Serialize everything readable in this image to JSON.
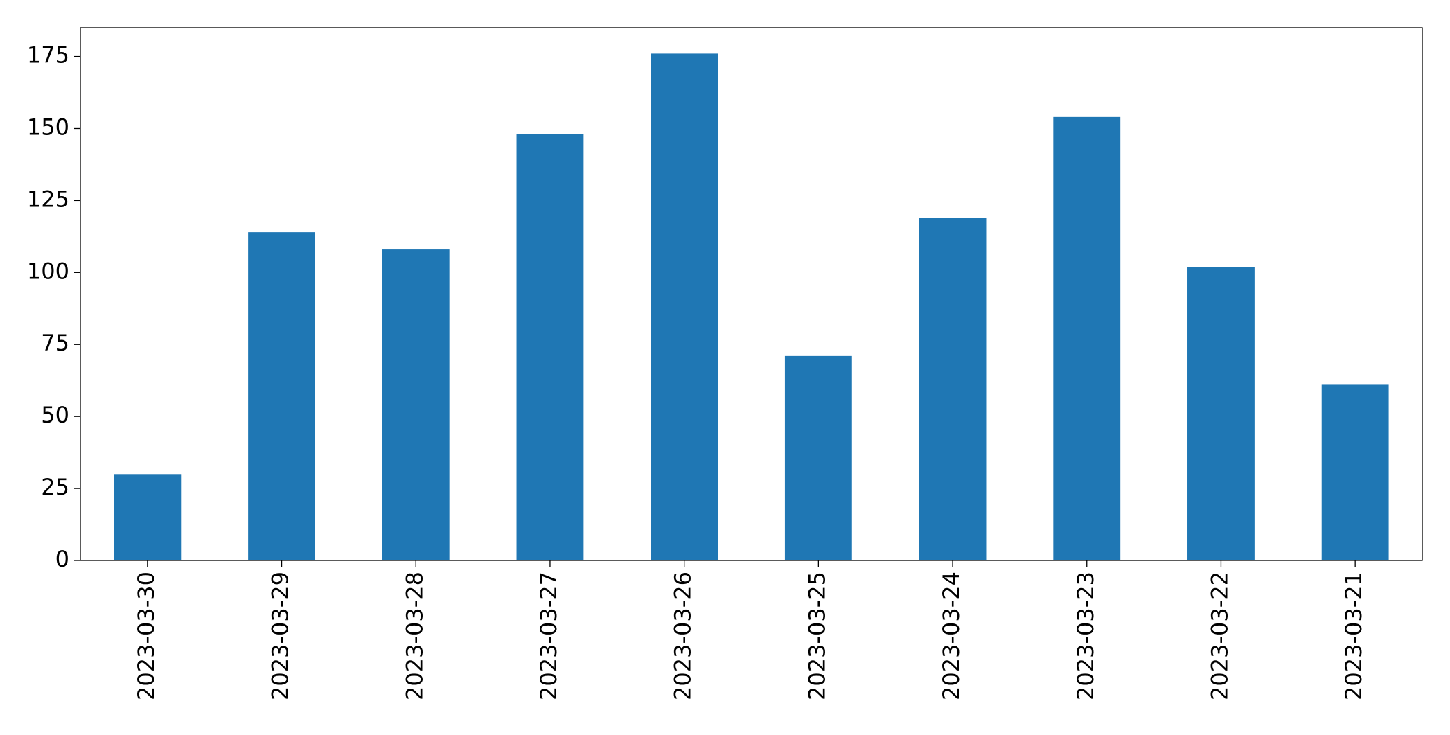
{
  "chart_data": {
    "type": "bar",
    "categories": [
      "2023-03-30",
      "2023-03-29",
      "2023-03-28",
      "2023-03-27",
      "2023-03-26",
      "2023-03-25",
      "2023-03-24",
      "2023-03-23",
      "2023-03-22",
      "2023-03-21"
    ],
    "values": [
      30,
      114,
      108,
      148,
      176,
      71,
      119,
      154,
      102,
      61
    ],
    "color": "#1f77b4",
    "ylim": [
      0,
      185
    ],
    "yticks": [
      0,
      25,
      50,
      75,
      100,
      125,
      150,
      175
    ],
    "grid": false
  }
}
